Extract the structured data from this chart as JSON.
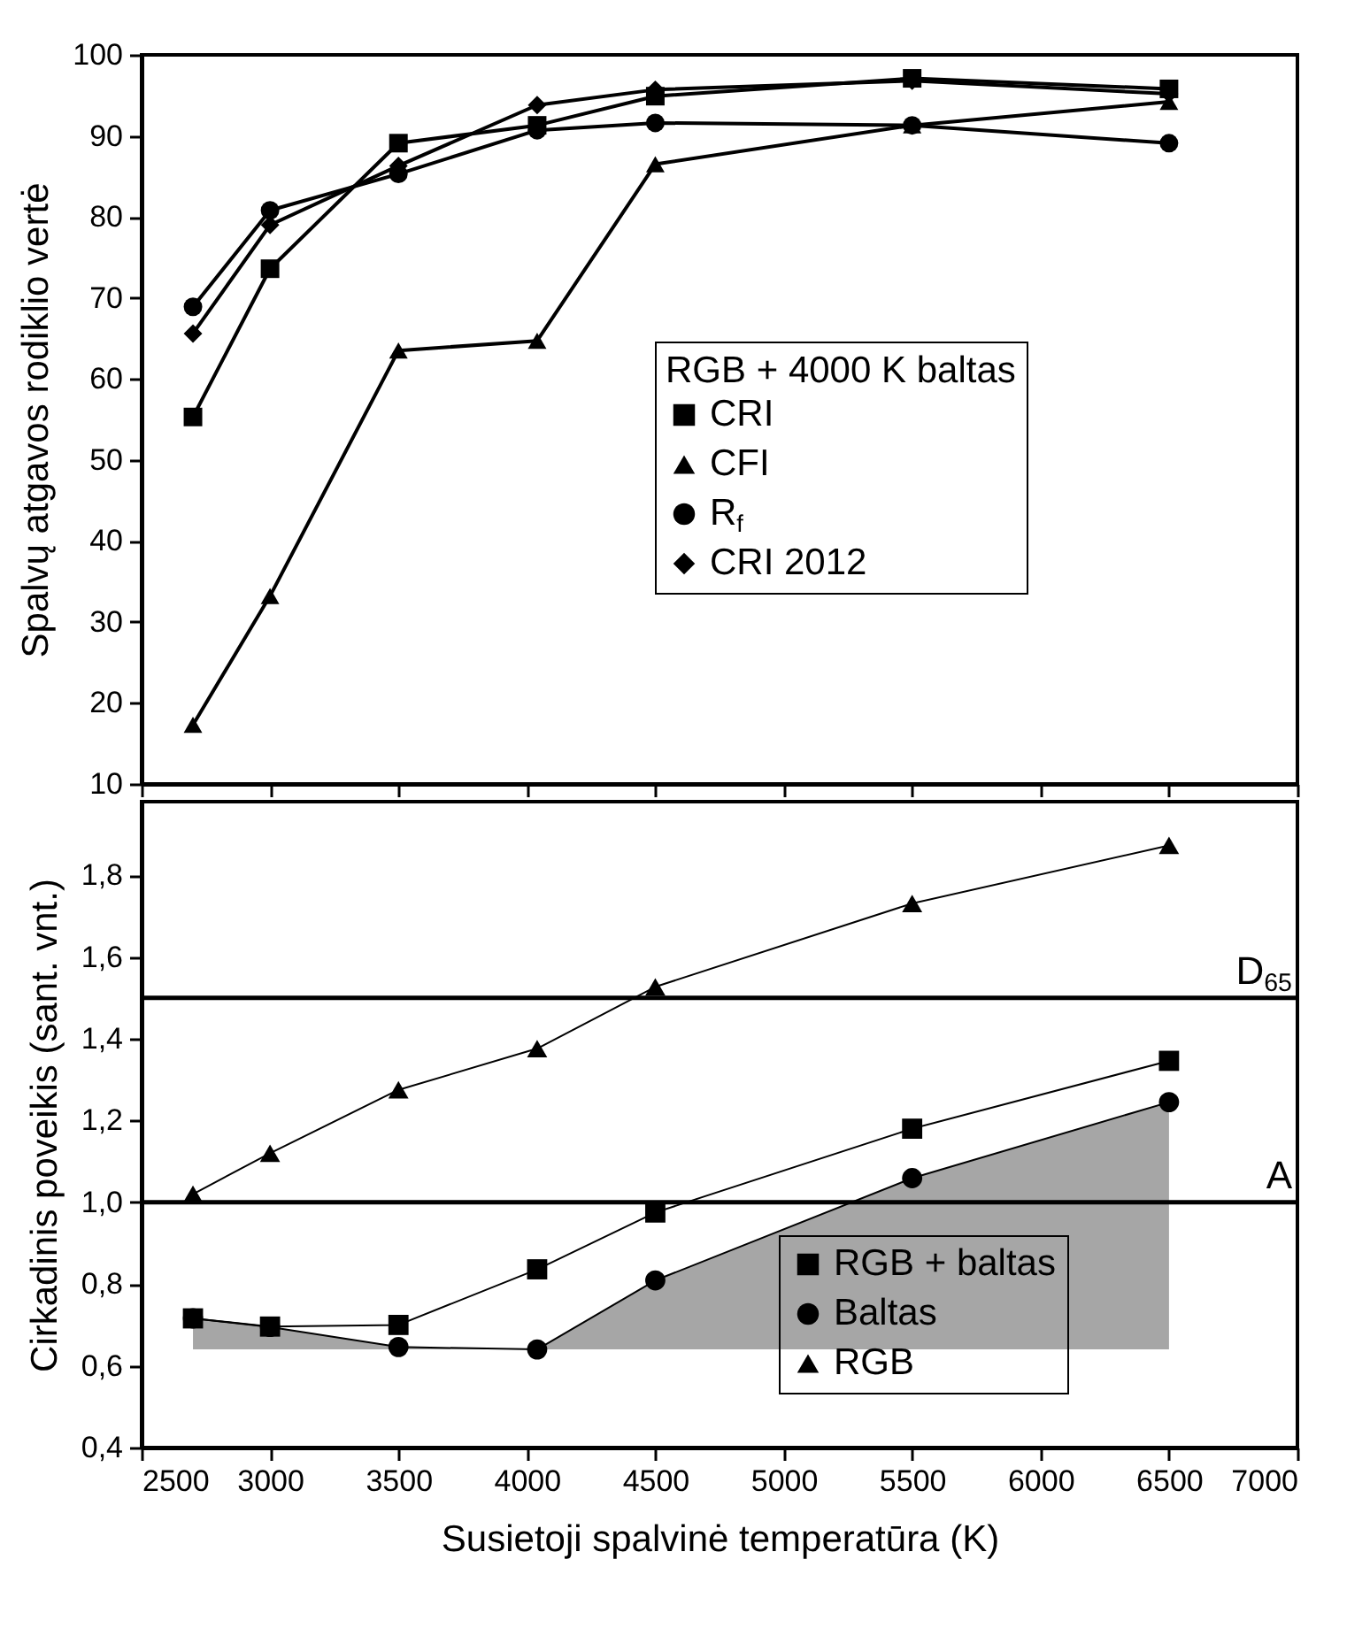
{
  "chart_data": [
    {
      "type": "line",
      "ylabel": "Spalvų atgavos rodiklio vertė",
      "legend_title": "RGB + 4000 K baltas",
      "legend": "bottom right",
      "tick_labels": "y",
      "x": [
        2700,
        3000,
        3500,
        4040,
        4500,
        5500,
        6500
      ],
      "xlim": [
        2500,
        7000
      ],
      "xticks": [
        2500,
        3000,
        3500,
        4000,
        4500,
        5000,
        5500,
        6000,
        6500,
        7000
      ],
      "ylim": [
        10,
        100
      ],
      "yticks": [
        10,
        20,
        30,
        40,
        50,
        60,
        70,
        80,
        90,
        100
      ],
      "series": [
        {
          "name": "CRI",
          "color": "#000000",
          "marker": "square",
          "values": [
            55.3,
            73.6,
            89.1,
            91.3,
            94.9,
            97.1,
            95.8
          ]
        },
        {
          "name": "CFI",
          "color": "#000000",
          "marker": "triangle",
          "values": [
            17.3,
            33.2,
            63.5,
            64.7,
            86.5,
            91.3,
            94.2
          ]
        },
        {
          "name": "R$_{f}$",
          "color": "#000000",
          "marker": "circle",
          "values": [
            68.9,
            80.8,
            85.3,
            90.7,
            91.6,
            91.3,
            89.1
          ]
        },
        {
          "name": "CRI 2012",
          "color": "#000000",
          "marker": "diamond",
          "values": [
            65.6,
            79.0,
            86.3,
            93.8,
            95.7,
            96.8,
            95.2
          ]
        }
      ]
    },
    {
      "type": "line",
      "xlabel": "Susietoji spalvinė temperatūra (K)",
      "ylabel": "Cirkadinis poveikis (sant. vnt.)",
      "legend": "bottom right",
      "x": [
        2700,
        3000,
        3500,
        4040,
        4500,
        5500,
        6500
      ],
      "xlim": [
        2500,
        7000
      ],
      "xticks": [
        2500,
        3000,
        3500,
        4000,
        4500,
        5000,
        5500,
        6000,
        6500,
        7000
      ],
      "ylim": [
        0.4,
        1.98
      ],
      "yticks": [
        {
          "value": 0.4,
          "label": "0,4"
        },
        {
          "value": 0.6,
          "label": "0,6"
        },
        {
          "value": 0.8,
          "label": "0,8"
        },
        {
          "value": 1.0,
          "label": "1,0"
        },
        {
          "value": 1.2,
          "label": "1,2"
        },
        {
          "value": 1.4,
          "label": "1,4"
        },
        {
          "value": 1.6,
          "label": "1,6"
        },
        {
          "value": 1.8,
          "label": "1,8"
        }
      ],
      "ref_lines": [
        {
          "axis": "y",
          "value": 1.5,
          "label": "D$_{65}$",
          "color": "#000000"
        },
        {
          "axis": "y",
          "value": 1.0,
          "label": "A",
          "color": "#000000"
        }
      ],
      "series": [
        {
          "name": "RGB + baltas",
          "color": "#000000",
          "marker": "square",
          "values": [
            0.716,
            0.696,
            0.7,
            0.836,
            0.975,
            1.18,
            1.346
          ]
        },
        {
          "name": "Baltas",
          "color": "#000000",
          "marker": "circle",
          "values": [
            0.716,
            0.695,
            0.646,
            0.64,
            0.809,
            1.059,
            1.245
          ],
          "lower": [
            0.64,
            0.64,
            0.64,
            0.64,
            0.64,
            0.64,
            0.64
          ],
          "upper": [
            0.716,
            0.695,
            0.646,
            0.64,
            0.809,
            1.059,
            1.245
          ]
        },
        {
          "name": "RGB",
          "color": "#000000",
          "marker": "triangle",
          "values": [
            1.02,
            1.12,
            1.275,
            1.376,
            1.527,
            1.731,
            1.873
          ]
        }
      ]
    }
  ]
}
